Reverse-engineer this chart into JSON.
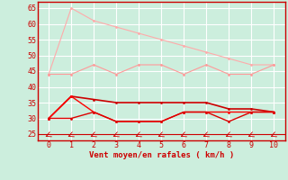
{
  "x": [
    0,
    1,
    2,
    3,
    4,
    5,
    6,
    7,
    8,
    9,
    10
  ],
  "line1_y": [
    44,
    65,
    61,
    59,
    57,
    55,
    53,
    51,
    49,
    47,
    47
  ],
  "line2_y": [
    44,
    44,
    47,
    44,
    47,
    47,
    44,
    47,
    44,
    44,
    47
  ],
  "line3_y": [
    30,
    37,
    36,
    35,
    35,
    35,
    35,
    35,
    33,
    33,
    32
  ],
  "line4_y": [
    30,
    37,
    32,
    29,
    29,
    29,
    32,
    32,
    32,
    32,
    32
  ],
  "line5_y": [
    30,
    30,
    32,
    29,
    29,
    29,
    32,
    32,
    29,
    32,
    32
  ],
  "line1_color": "#ffaaaa",
  "line2_color": "#ff9999",
  "line3_color": "#cc0000",
  "line4_color": "#ff0000",
  "line5_color": "#dd0000",
  "xlabel": "Vent moyen/en rafales ( km/h )",
  "background_color": "#cceedd",
  "grid_color": "#ffffff",
  "axis_color": "#cc0000",
  "text_color": "#cc0000",
  "ylim": [
    23,
    67
  ],
  "xlim": [
    -0.5,
    10.5
  ],
  "yticks": [
    25,
    30,
    35,
    40,
    45,
    50,
    55,
    60,
    65
  ],
  "xticks": [
    0,
    1,
    2,
    3,
    4,
    5,
    6,
    7,
    8,
    9,
    10
  ],
  "marker_y": 24.0
}
